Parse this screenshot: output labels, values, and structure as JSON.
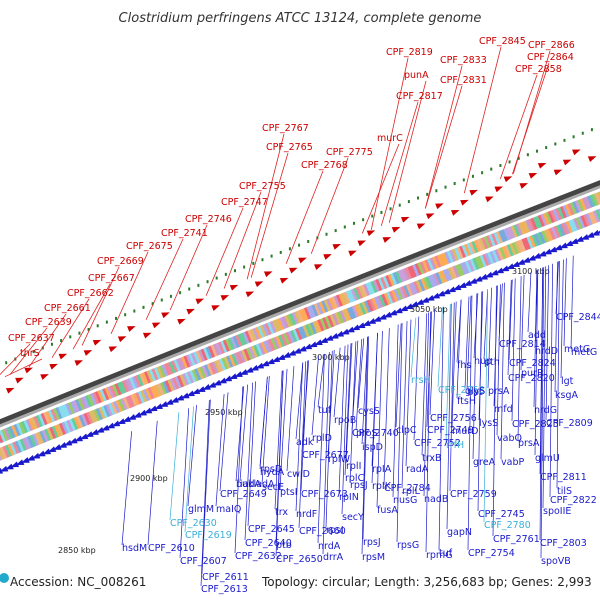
{
  "header": {
    "title": "Clostridium perfringens ATCC 13124, complete genome"
  },
  "footer": {
    "accession": "Accession: NC_008261",
    "summary": "Topology: circular; Length: 3,256,683 bp; Genes: 2,993"
  },
  "colors": {
    "reverse_strand": "#1a1acc",
    "forward_strand": "#cc0000",
    "rna": "#33bbdd",
    "backbone": "#888888"
  },
  "kbp_marks": [
    "2850 kbp",
    "2900 kbp",
    "2950 kbp",
    "3000 kbp",
    "3050 kbp",
    "3100 kbp"
  ],
  "red_labels": [
    "CPF_2866",
    "CPF_2864",
    "CPF_2858",
    "CPF_2845",
    "CPF_2833",
    "CPF_2831",
    "CPF_2819",
    "punA",
    "CPF_2817",
    "murC",
    "CPF_2775",
    "CPF_2768",
    "CPF_2767",
    "CPF_2765",
    "CPF_2755",
    "CPF_2747",
    "CPF_2746",
    "CPF_2741",
    "CPF_2675",
    "CPF_2669",
    "CPF_2667",
    "CPF_2662",
    "CPF_2661",
    "CPF_2639",
    "CPF_2637",
    "thrS"
  ],
  "blue_labels": [
    "CPF_2844",
    "add",
    "metG",
    "nrdD",
    "metG",
    "CPF_2814",
    "CPF_2824",
    "hup",
    "pth",
    "purR",
    "lgt",
    "prsA",
    "ksgA",
    "CPF_2820",
    "mfd",
    "nrdG",
    "fhs",
    "ftsH",
    "hpt",
    "lysS",
    "CPF_2809",
    "CPF_2825",
    "rrsH",
    "CPF_2753",
    "glyS",
    "CPF_2756",
    "murD",
    "CPF_2749",
    "vabQ",
    "prsA",
    "tuf",
    "rpoB",
    "cysS",
    "CPF_2740",
    "rplD",
    "adk",
    "clpC",
    "CPF_2752",
    "glmU",
    "rplW",
    "ispD",
    "trxB",
    "rrfH",
    "rplI",
    "CPF_2677",
    "rpsD",
    "proS",
    "radA",
    "greA",
    "vabP",
    "rpIA",
    "CPF_2811",
    "rplC",
    "CPF_2784",
    "rplL",
    "rpsJ",
    "rpIK",
    "nadB",
    "tilS",
    "CPF_2759",
    "fusA",
    "bukladA",
    "iadA",
    "ptsI",
    "CPF_2649",
    "cwlD",
    "hydA",
    "secE",
    "CPF_2673",
    "glmM",
    "maIQ",
    "rpIN",
    "nusG",
    "CPF_2745",
    "spoIIE",
    "CPF_2822",
    "CPF_2630",
    "trx",
    "nrdF",
    "secY",
    "gapN",
    "CPF_2780",
    "CPF_2619",
    "CPF_2645",
    "CPF_2640",
    "ptb",
    "CPF_2660",
    "rpsI",
    "CPF_2761",
    "CPF_2803",
    "rpsJ",
    "CPF_2610",
    "CPF_2632",
    "nrdA",
    "rpsG",
    "tuf",
    "CPF_2754",
    "hsdM",
    "CPF_2607",
    "CPF_2650",
    "drrA",
    "rpsM",
    "rpmG",
    "spoVB",
    "CPF_2611",
    "CPF_2613"
  ]
}
